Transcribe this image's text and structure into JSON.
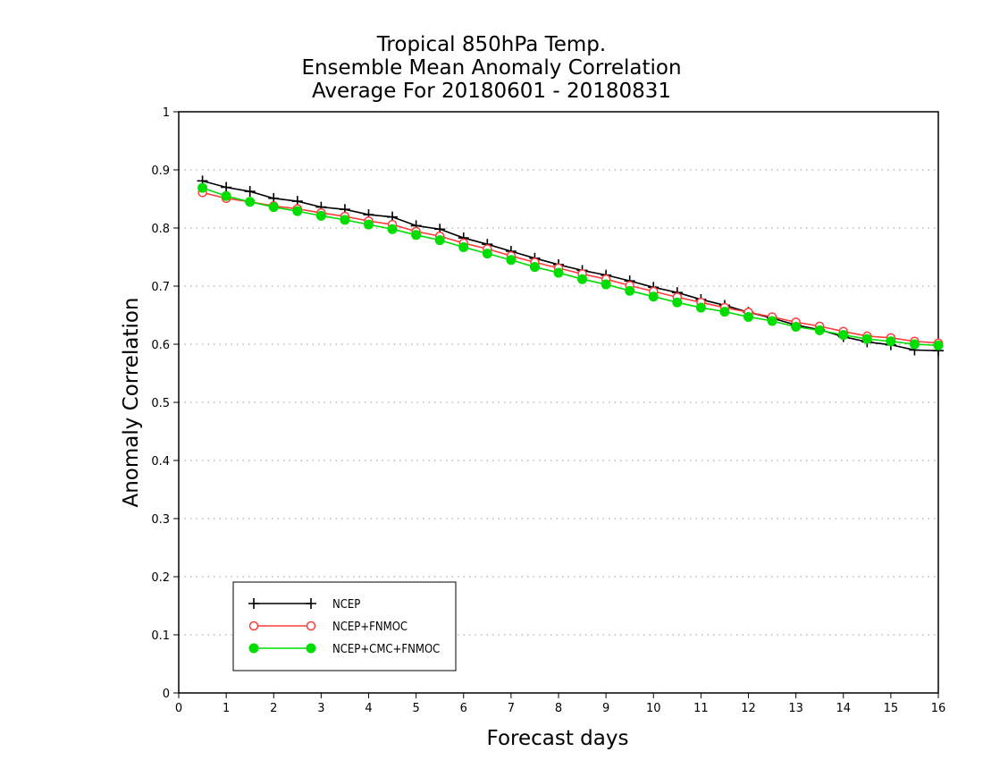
{
  "chart_data": {
    "type": "line",
    "title_lines": [
      "Tropical 850hPa Temp.",
      "Ensemble Mean Anomaly Correlation",
      "Average For 20180601 - 20180831"
    ],
    "xlabel": "Forecast days",
    "ylabel": "Anomaly Correlation",
    "xlim": [
      0,
      16
    ],
    "ylim": [
      0,
      1
    ],
    "xticks": [
      "0",
      "1",
      "2",
      "3",
      "4",
      "5",
      "6",
      "7",
      "8",
      "9",
      "10",
      "11",
      "12",
      "13",
      "14",
      "15",
      "16"
    ],
    "yticks": [
      "0",
      "0.1",
      "0.2",
      "0.3",
      "0.4",
      "0.5",
      "0.6",
      "0.7",
      "0.8",
      "0.9",
      "1"
    ],
    "grid": "dotted horizontal",
    "legend_position": "lower-left",
    "x": [
      0.5,
      1,
      1.5,
      2,
      2.5,
      3,
      3.5,
      4,
      4.5,
      5,
      5.5,
      6,
      6.5,
      7,
      7.5,
      8,
      8.5,
      9,
      9.5,
      10,
      10.5,
      11,
      11.5,
      12,
      12.5,
      13,
      13.5,
      14,
      14.5,
      15,
      15.5,
      16
    ],
    "series": [
      {
        "name": "NCEP",
        "color": "#000000",
        "marker": "plus",
        "values": [
          0.881,
          0.87,
          0.863,
          0.851,
          0.846,
          0.836,
          0.832,
          0.823,
          0.819,
          0.804,
          0.798,
          0.783,
          0.772,
          0.76,
          0.748,
          0.737,
          0.727,
          0.719,
          0.709,
          0.698,
          0.689,
          0.677,
          0.667,
          0.655,
          0.645,
          0.633,
          0.625,
          0.613,
          0.604,
          0.599,
          0.59,
          0.589
        ]
      },
      {
        "name": "NCEP+FNMOC",
        "color": "#ff3b3b",
        "marker": "open-circle",
        "values": [
          0.861,
          0.851,
          0.845,
          0.838,
          0.833,
          0.826,
          0.82,
          0.812,
          0.806,
          0.794,
          0.786,
          0.774,
          0.764,
          0.752,
          0.741,
          0.731,
          0.721,
          0.712,
          0.701,
          0.691,
          0.681,
          0.672,
          0.663,
          0.655,
          0.647,
          0.638,
          0.631,
          0.622,
          0.614,
          0.611,
          0.605,
          0.602
        ]
      },
      {
        "name": "NCEP+CMC+FNMOC",
        "color": "#00dd00",
        "marker": "filled-circle",
        "values": [
          0.869,
          0.855,
          0.845,
          0.836,
          0.829,
          0.821,
          0.814,
          0.806,
          0.798,
          0.788,
          0.779,
          0.767,
          0.756,
          0.745,
          0.733,
          0.723,
          0.712,
          0.703,
          0.692,
          0.682,
          0.672,
          0.663,
          0.656,
          0.647,
          0.64,
          0.63,
          0.624,
          0.616,
          0.609,
          0.605,
          0.6,
          0.598
        ]
      }
    ]
  }
}
